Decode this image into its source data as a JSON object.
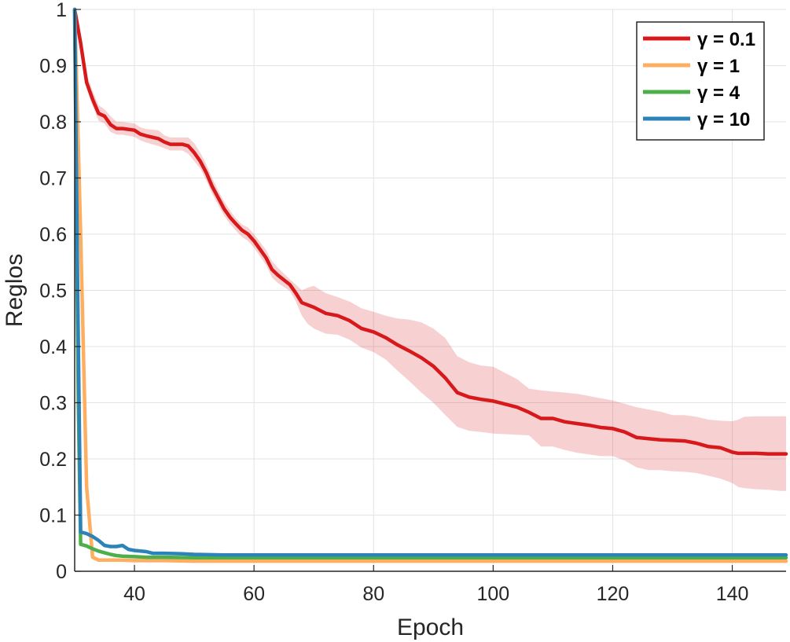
{
  "chart_data": {
    "type": "line",
    "xlabel": "Epoch",
    "ylabel": "Reglos",
    "xlim": [
      30,
      149
    ],
    "ylim": [
      0,
      1
    ],
    "xticks": [
      40,
      60,
      80,
      100,
      120,
      140
    ],
    "yticks": [
      0,
      0.1,
      0.2,
      0.3,
      0.4,
      0.5,
      0.6,
      0.7,
      0.8,
      0.9,
      1
    ],
    "ytick_labels": [
      "0",
      "0.1",
      "0.2",
      "0.3",
      "0.4",
      "0.5",
      "0.6",
      "0.7",
      "0.8",
      "0.9",
      "1"
    ],
    "grid": true,
    "legend_position": "top-right",
    "series": [
      {
        "name": "γ = 0.1",
        "color": "#d7191c",
        "x": [
          30,
          31,
          32,
          33,
          34,
          35,
          36,
          37,
          38,
          40,
          41,
          42,
          44,
          45,
          46,
          48,
          49,
          50,
          51,
          52,
          53,
          54,
          55,
          56,
          57,
          58,
          59,
          60,
          62,
          63,
          64,
          66,
          67,
          68,
          69,
          70,
          72,
          74,
          76,
          78,
          80,
          82,
          84,
          86,
          88,
          90,
          92,
          94,
          96,
          98,
          100,
          104,
          106,
          108,
          110,
          112,
          114,
          116,
          118,
          120,
          122,
          124,
          126,
          128,
          130,
          132,
          134,
          136,
          138,
          140,
          141,
          142,
          144,
          146,
          148,
          149
        ],
        "y": [
          1.0,
          0.94,
          0.87,
          0.84,
          0.815,
          0.81,
          0.795,
          0.788,
          0.788,
          0.785,
          0.778,
          0.775,
          0.77,
          0.764,
          0.76,
          0.76,
          0.757,
          0.745,
          0.73,
          0.71,
          0.685,
          0.665,
          0.645,
          0.63,
          0.618,
          0.607,
          0.6,
          0.588,
          0.558,
          0.537,
          0.527,
          0.51,
          0.495,
          0.478,
          0.474,
          0.47,
          0.459,
          0.455,
          0.446,
          0.432,
          0.426,
          0.416,
          0.403,
          0.392,
          0.38,
          0.365,
          0.344,
          0.318,
          0.31,
          0.306,
          0.303,
          0.292,
          0.283,
          0.272,
          0.272,
          0.266,
          0.263,
          0.26,
          0.256,
          0.254,
          0.248,
          0.238,
          0.236,
          0.234,
          0.233,
          0.232,
          0.228,
          0.222,
          0.22,
          0.212,
          0.21,
          0.21,
          0.21,
          0.209,
          0.209,
          0.209
        ],
        "band_upper": [
          1.0,
          0.95,
          0.885,
          0.855,
          0.83,
          0.822,
          0.81,
          0.8,
          0.8,
          0.797,
          0.79,
          0.787,
          0.785,
          0.776,
          0.772,
          0.772,
          0.772,
          0.762,
          0.745,
          0.725,
          0.7,
          0.678,
          0.658,
          0.642,
          0.628,
          0.617,
          0.612,
          0.6,
          0.572,
          0.552,
          0.54,
          0.52,
          0.51,
          0.5,
          0.505,
          0.508,
          0.495,
          0.488,
          0.48,
          0.468,
          0.462,
          0.455,
          0.45,
          0.448,
          0.443,
          0.432,
          0.415,
          0.383,
          0.372,
          0.366,
          0.364,
          0.342,
          0.325,
          0.322,
          0.32,
          0.318,
          0.316,
          0.312,
          0.308,
          0.304,
          0.298,
          0.292,
          0.288,
          0.284,
          0.278,
          0.278,
          0.275,
          0.27,
          0.268,
          0.267,
          0.27,
          0.275,
          0.276,
          0.276,
          0.276,
          0.276
        ],
        "band_lower": [
          1.0,
          0.93,
          0.86,
          0.828,
          0.802,
          0.797,
          0.782,
          0.777,
          0.777,
          0.773,
          0.767,
          0.763,
          0.757,
          0.753,
          0.749,
          0.749,
          0.743,
          0.73,
          0.717,
          0.696,
          0.672,
          0.652,
          0.633,
          0.618,
          0.606,
          0.595,
          0.588,
          0.576,
          0.545,
          0.523,
          0.513,
          0.499,
          0.48,
          0.455,
          0.44,
          0.432,
          0.423,
          0.421,
          0.412,
          0.398,
          0.39,
          0.377,
          0.357,
          0.338,
          0.318,
          0.3,
          0.278,
          0.257,
          0.25,
          0.248,
          0.245,
          0.243,
          0.242,
          0.222,
          0.222,
          0.216,
          0.211,
          0.208,
          0.205,
          0.205,
          0.197,
          0.185,
          0.18,
          0.18,
          0.178,
          0.177,
          0.175,
          0.17,
          0.165,
          0.157,
          0.15,
          0.148,
          0.146,
          0.145,
          0.143,
          0.143
        ]
      },
      {
        "name": "γ = 1",
        "color": "#fdae61",
        "x": [
          30,
          31,
          32,
          33,
          34,
          36,
          38,
          40,
          45,
          50,
          60,
          80,
          100,
          120,
          140,
          149
        ],
        "y": [
          1.0,
          0.6,
          0.15,
          0.025,
          0.02,
          0.02,
          0.02,
          0.019,
          0.019,
          0.018,
          0.018,
          0.018,
          0.018,
          0.018,
          0.018,
          0.018
        ],
        "band_upper": [
          1.0,
          0.63,
          0.18,
          0.03,
          0.022,
          0.022,
          0.021,
          0.02,
          0.02,
          0.019,
          0.019,
          0.019,
          0.019,
          0.019,
          0.019,
          0.019
        ],
        "band_lower": [
          1.0,
          0.57,
          0.12,
          0.02,
          0.018,
          0.018,
          0.018,
          0.018,
          0.018,
          0.017,
          0.017,
          0.017,
          0.017,
          0.017,
          0.017,
          0.017
        ]
      },
      {
        "name": "γ = 4",
        "color": "#4daf4a",
        "x": [
          30,
          30.6,
          31,
          32,
          33,
          34,
          35,
          36,
          37,
          38,
          40,
          42,
          45,
          50,
          55,
          60,
          80,
          100,
          120,
          140,
          149
        ],
        "y": [
          1.0,
          0.3,
          0.048,
          0.045,
          0.04,
          0.036,
          0.033,
          0.03,
          0.028,
          0.027,
          0.026,
          0.025,
          0.025,
          0.024,
          0.024,
          0.024,
          0.024,
          0.024,
          0.024,
          0.024,
          0.024
        ]
      },
      {
        "name": "γ = 10",
        "color": "#2b83ba",
        "x": [
          30,
          30.5,
          31,
          32,
          33,
          34,
          35,
          36,
          37,
          38,
          39,
          40,
          41,
          42,
          43,
          45,
          48,
          50,
          55,
          60,
          70,
          80,
          100,
          120,
          140,
          149
        ],
        "y": [
          1.0,
          0.5,
          0.07,
          0.067,
          0.062,
          0.055,
          0.046,
          0.044,
          0.044,
          0.046,
          0.039,
          0.037,
          0.036,
          0.035,
          0.032,
          0.032,
          0.031,
          0.03,
          0.029,
          0.029,
          0.029,
          0.029,
          0.029,
          0.029,
          0.029,
          0.029
        ]
      }
    ]
  }
}
